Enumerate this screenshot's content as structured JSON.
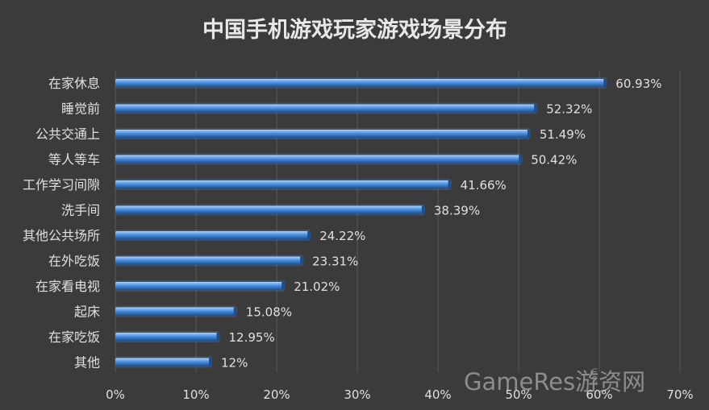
{
  "chart_data": {
    "type": "bar",
    "orientation": "horizontal",
    "title": "中国手机游戏玩家游戏场景分布",
    "xlabel": "",
    "ylabel": "",
    "categories": [
      "在家休息",
      "睡觉前",
      "公共交通上",
      "等人等车",
      "工作学习间隙",
      "洗手间",
      "其他公共场所",
      "在外吃饭",
      "在家看电视",
      "起床",
      "在家吃饭",
      "其他"
    ],
    "values": [
      60.93,
      52.32,
      51.49,
      50.42,
      41.66,
      38.39,
      24.22,
      23.31,
      21.02,
      15.08,
      12.95,
      12
    ],
    "data_labels": [
      "60.93%",
      "52.32%",
      "51.49%",
      "50.42%",
      "41.66%",
      "38.39%",
      "24.22%",
      "23.31%",
      "21.02%",
      "15.08%",
      "12.95%",
      "12%"
    ],
    "xlim": [
      0,
      70
    ],
    "x_ticks": [
      0,
      10,
      20,
      30,
      40,
      50,
      60,
      70
    ],
    "x_tick_labels": [
      "0%",
      "10%",
      "20%",
      "30%",
      "40%",
      "50%",
      "60%",
      "70%"
    ],
    "grid": "vertical",
    "legend": "none"
  },
  "colors": {
    "background": "#3b3b3b",
    "bar_light": "#a9d2ff",
    "bar_mid": "#4a90e2",
    "bar_dark": "#1f4f8a",
    "text": "#e0e0e0",
    "gridline": "#5a5a5a"
  },
  "watermark": {
    "text": "GameRes游资网",
    "small": "com"
  }
}
